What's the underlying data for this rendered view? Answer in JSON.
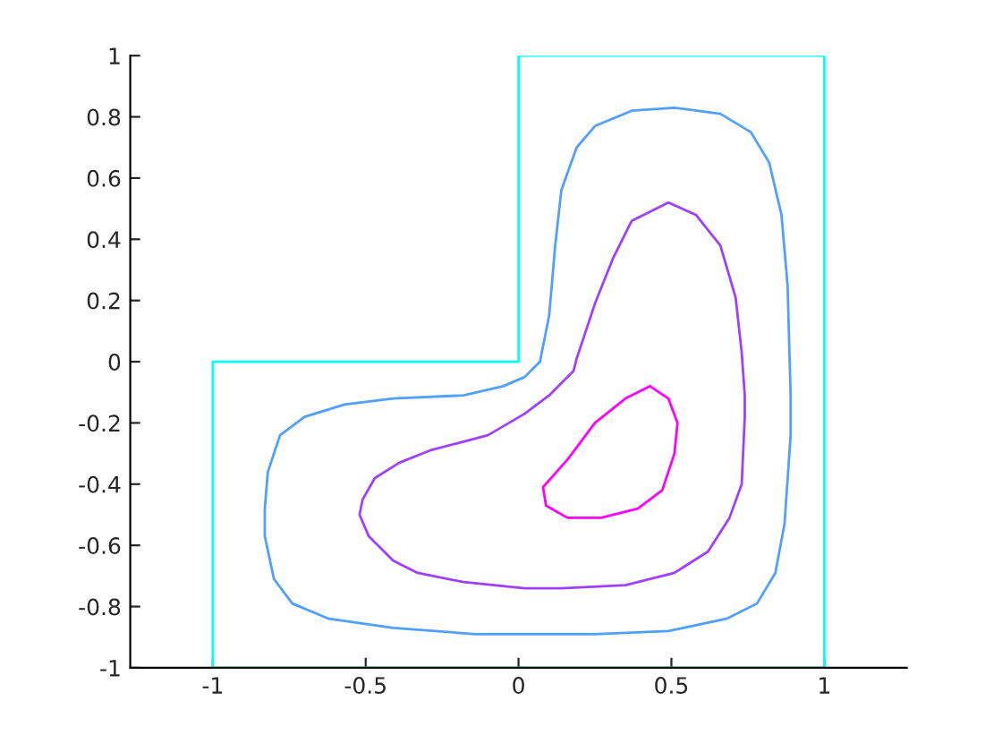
{
  "chart_data": {
    "type": "line",
    "xlim": [
      -1.27,
      1.27
    ],
    "ylim": [
      -1,
      1
    ],
    "xticks": [
      {
        "value": -1,
        "label": "-1"
      },
      {
        "value": -0.5,
        "label": "-0.5"
      },
      0,
      0.5,
      1
    ],
    "yticks": [
      {
        "value": -1,
        "label": "-1"
      },
      {
        "value": -0.8,
        "label": "-0.8"
      },
      {
        "value": -0.6,
        "label": "-0.6"
      },
      {
        "value": -0.4,
        "label": "-0.4"
      },
      {
        "value": -0.2,
        "label": "-0.2"
      },
      0,
      0.2,
      0.4,
      0.6,
      0.8,
      1
    ]
  }
}
